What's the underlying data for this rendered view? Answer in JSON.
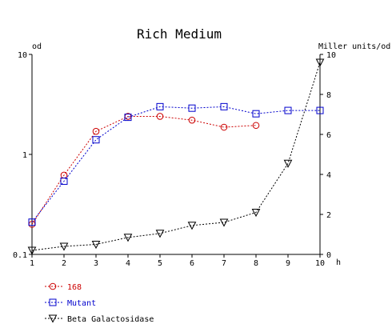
{
  "chart_data": {
    "type": "line",
    "title": "Rich Medium",
    "xlabel": "h",
    "x_ticks": [
      "1",
      "2",
      "3",
      "4",
      "5",
      "6",
      "7",
      "8",
      "9",
      "10"
    ],
    "x_range": [
      1,
      10
    ],
    "y_left": {
      "label": "od",
      "scale": "log",
      "range": [
        0.1,
        10
      ],
      "ticks": [
        0.1,
        1,
        10
      ],
      "tick_labels": [
        "0.1",
        "1",
        "10"
      ]
    },
    "y_right": {
      "label": "Miller units/od",
      "scale": "linear",
      "range": [
        0,
        10
      ],
      "ticks": [
        0,
        2,
        4,
        6,
        8,
        10
      ],
      "tick_labels": [
        "0",
        "2",
        "4",
        "6",
        "8",
        "10"
      ]
    },
    "grid": false,
    "legend_position": "bottom-left",
    "series": [
      {
        "name": "168",
        "axis": "left",
        "color": "#cc0000",
        "marker": "circle",
        "points": [
          [
            1,
            0.2
          ],
          [
            2,
            0.62
          ],
          [
            3,
            1.7
          ],
          [
            4,
            2.4
          ],
          [
            5,
            2.4
          ],
          [
            6,
            2.2
          ],
          [
            7,
            1.87
          ],
          [
            8,
            1.95
          ]
        ]
      },
      {
        "name": "Mutant",
        "axis": "left",
        "color": "#0000cc",
        "marker": "square",
        "points": [
          [
            1,
            0.21
          ],
          [
            2,
            0.54
          ],
          [
            3,
            1.4
          ],
          [
            4,
            2.35
          ],
          [
            5,
            3.0
          ],
          [
            6,
            2.9
          ],
          [
            7,
            3.0
          ],
          [
            8,
            2.55
          ],
          [
            9,
            2.75
          ],
          [
            10,
            2.75
          ]
        ]
      },
      {
        "name": "Beta Galactosidase",
        "axis": "right",
        "color": "#000000",
        "marker": "triangle-down",
        "points": [
          [
            1,
            0.2
          ],
          [
            2,
            0.4
          ],
          [
            3,
            0.5
          ],
          [
            4,
            0.85
          ],
          [
            5,
            1.05
          ],
          [
            6,
            1.45
          ],
          [
            7,
            1.6
          ],
          [
            8,
            2.1
          ],
          [
            9,
            4.55
          ],
          [
            10,
            9.6
          ]
        ]
      }
    ]
  }
}
